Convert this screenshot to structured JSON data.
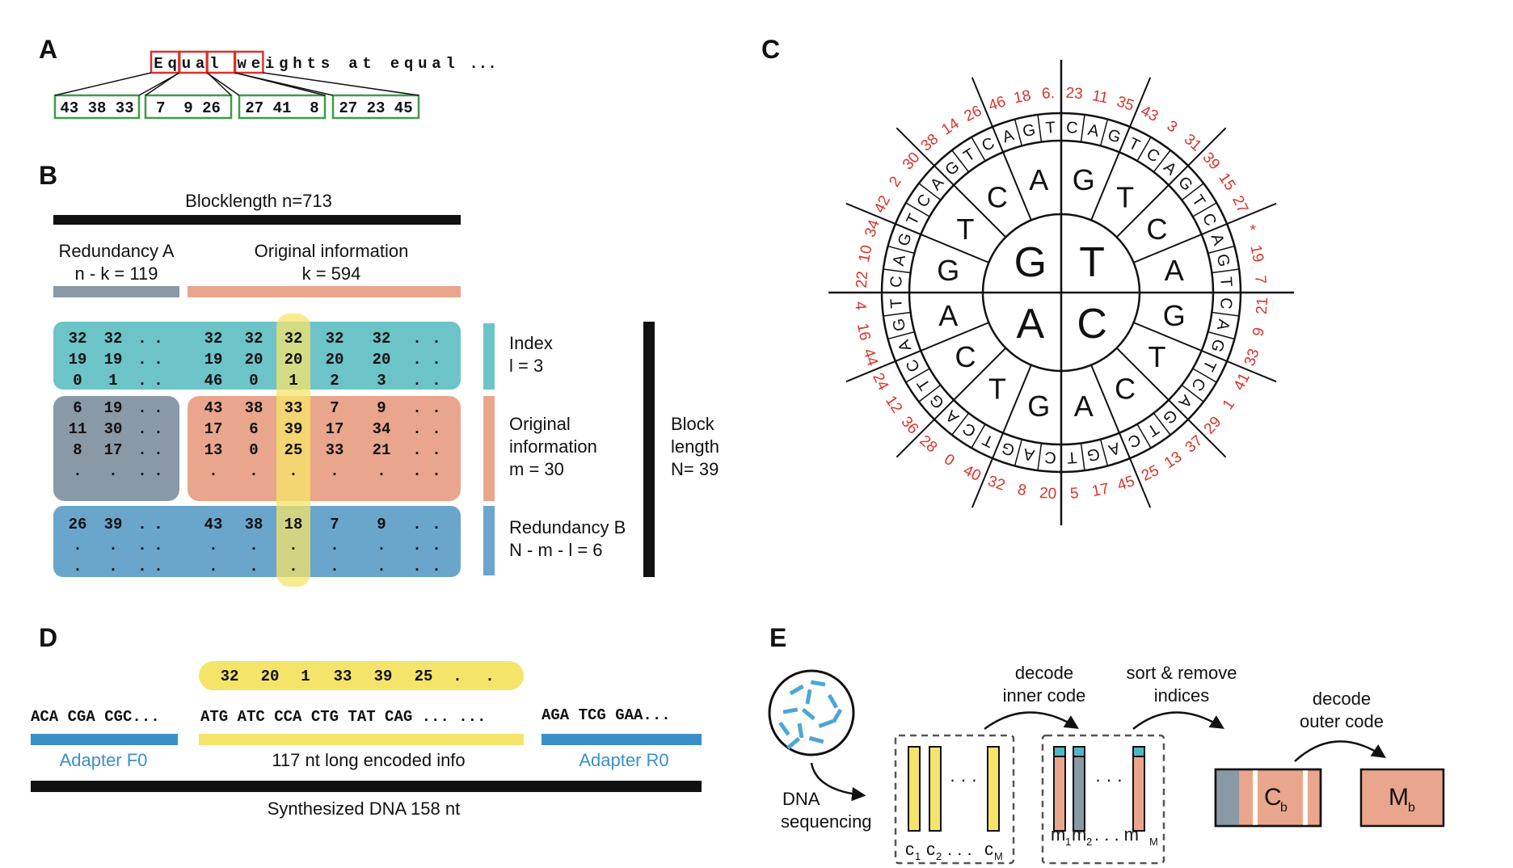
{
  "panel_labels": [
    "A",
    "B",
    "C",
    "D",
    "E"
  ],
  "panelA": {
    "text_chars": [
      "E",
      "q",
      "u",
      "a",
      "l",
      " ",
      "w",
      "e",
      "i",
      "g",
      "h",
      "t",
      "s",
      " ",
      "a",
      "t",
      " ",
      "e",
      "q",
      "u",
      "a",
      "l",
      "..."
    ],
    "triples": [
      "43 38 33",
      "7  9 26",
      "27 41  8",
      "27 23 45"
    ]
  },
  "panelB": {
    "blocklength": "Blocklength n=713",
    "redundancyA": [
      "Redundancy A",
      "n - k = 119"
    ],
    "original_info": [
      "Original information",
      "k = 594"
    ],
    "index_rows": [
      [
        "32",
        "32",
        ".",
        ".",
        "32",
        "32",
        "32",
        "32",
        "32",
        ".",
        "."
      ],
      [
        "19",
        "19",
        ".",
        ".",
        "19",
        "20",
        "20",
        "20",
        "20",
        ".",
        "."
      ],
      [
        "0",
        "1",
        ".",
        ".",
        "46",
        "0",
        "1",
        "2",
        "3",
        ".",
        "."
      ]
    ],
    "orig_rows": [
      [
        "6",
        "19",
        ".",
        ".",
        "43",
        "38",
        "33",
        "7",
        "9",
        ".",
        "."
      ],
      [
        "11",
        "30",
        ".",
        ".",
        "17",
        "6",
        "39",
        "17",
        "34",
        ".",
        "."
      ],
      [
        "8",
        "17",
        ".",
        ".",
        "13",
        "0",
        "25",
        "33",
        "21",
        ".",
        "."
      ],
      [
        ".",
        ".",
        ".",
        ".",
        ".",
        ".",
        ".",
        ".",
        ".",
        ".",
        "."
      ]
    ],
    "redB_rows": [
      [
        "26",
        "39",
        ".",
        ".",
        "43",
        "38",
        "18",
        "7",
        "9",
        ".",
        "."
      ],
      [
        ".",
        ".",
        ".",
        ".",
        ".",
        ".",
        ".",
        ".",
        ".",
        ".",
        "."
      ],
      [
        ".",
        ".",
        ".",
        ".",
        ".",
        ".",
        ".",
        ".",
        ".",
        ".",
        "."
      ]
    ],
    "legend_index": [
      "Index",
      "l = 3"
    ],
    "legend_original": [
      "Original",
      "information",
      "m = 30"
    ],
    "legend_redB": [
      "Redundancy B",
      "N - m - l = 6"
    ],
    "block_length": [
      "Block",
      "length",
      "N= 39"
    ]
  },
  "panelC": {
    "center": [
      "G",
      "T",
      "C",
      "A"
    ],
    "ring2": [
      "G",
      "T",
      "C",
      "A",
      "G",
      "T",
      "C",
      "A",
      "G",
      "T",
      "C",
      "A",
      "G",
      "T",
      "C",
      "A"
    ],
    "ring3": [
      "C",
      "A",
      "G",
      "T",
      "C",
      "A",
      "G",
      "T",
      "C",
      "A",
      "G",
      "T",
      "C",
      "A",
      "G",
      "T",
      "C",
      "A",
      "G",
      "T",
      "C",
      "A",
      "G",
      "T",
      "C",
      "A",
      "G",
      "T",
      "C",
      "A",
      "G",
      "T",
      "C",
      "A",
      "G",
      "T",
      "C",
      "A",
      "G",
      "T",
      "C",
      "A",
      "G",
      "T",
      "C",
      "A",
      "G",
      "T"
    ],
    "numbers": [
      "23",
      "11",
      "35",
      "43",
      "3",
      "31",
      "39",
      "15",
      "27",
      "*",
      "19",
      "7",
      "21",
      "9",
      "33",
      "41",
      "1",
      "29",
      "37",
      "13",
      "25",
      "45",
      "17",
      "5",
      "20",
      "8",
      "32",
      "40",
      "0",
      "28",
      "36",
      "12",
      "24",
      "44",
      "16",
      "4",
      "22",
      "10",
      "34",
      "42",
      "2",
      "30",
      "38",
      "14",
      "26",
      "46",
      "18",
      "6."
    ]
  },
  "panelD": {
    "index_seq": [
      "32",
      "20",
      "1",
      "33",
      "39",
      "25",
      ".",
      "."
    ],
    "adapterF_seq": "ACA CGA CGC...",
    "encoded_seq": "ATG ATC CCA CTG TAT CAG ... ...",
    "adapterR_seq": "AGA TCG GAA...",
    "adapterF_label": "Adapter F0",
    "encoded_label": "117 nt long encoded info",
    "adapterR_label": "Adapter R0",
    "synth_label": "Synthesized DNA 158 nt"
  },
  "panelE": {
    "dna_seq": [
      "DNA",
      "sequencing"
    ],
    "decode_inner": [
      "decode",
      "inner code"
    ],
    "sort_remove": [
      "sort & remove",
      "indices"
    ],
    "decode_outer": [
      "decode",
      "outer code"
    ],
    "c_label": "C",
    "c_sub": "b",
    "m_label": "M",
    "m_sub": "b",
    "c_cols": [
      "c",
      "1",
      "c",
      "2",
      ". . .",
      "c",
      "M"
    ],
    "m_cols": [
      "m",
      "1",
      "m",
      "2",
      ". . . m",
      "M"
    ],
    "dots": "· · ·"
  },
  "colors": {
    "red": "#d9332a",
    "green": "#3f9a4a",
    "teal": "#6cc4c9",
    "gray": "#8a99a6",
    "salmon": "#e9a68c",
    "blue": "#6aa5cb",
    "yellow": "#f5e46a",
    "adapterBlue": "#3b8fc9"
  }
}
